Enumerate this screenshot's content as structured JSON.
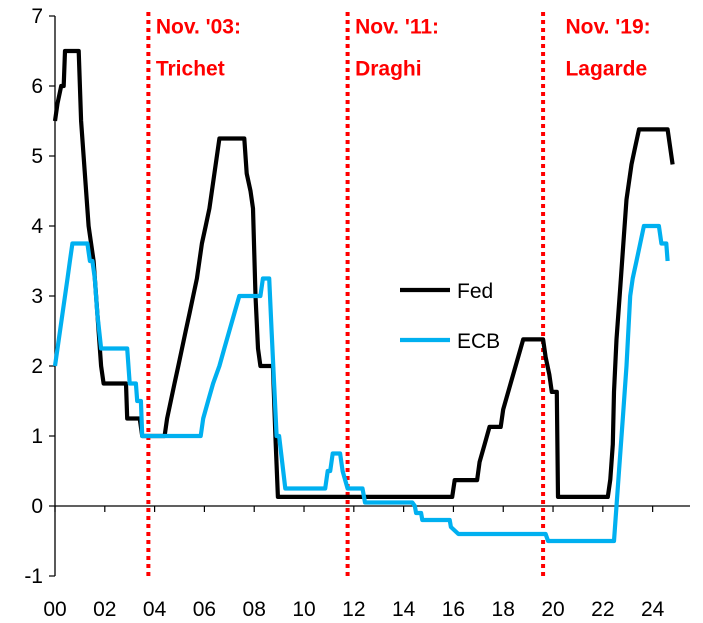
{
  "chart_data": {
    "type": "line",
    "title": "",
    "xlabel": "",
    "ylabel": "",
    "xlim": [
      0,
      25.5
    ],
    "ylim": [
      -1,
      7
    ],
    "y_ticks": [
      "-1",
      "0",
      "1",
      "2",
      "3",
      "4",
      "5",
      "6",
      "7"
    ],
    "y_tick_values": [
      -1,
      0,
      1,
      2,
      3,
      4,
      5,
      6,
      7
    ],
    "x_ticks": [
      "00",
      "02",
      "04",
      "06",
      "08",
      "10",
      "12",
      "14",
      "16",
      "18",
      "20",
      "22",
      "24"
    ],
    "x_tick_values": [
      0,
      2,
      4,
      6,
      8,
      10,
      12,
      14,
      16,
      18,
      20,
      22,
      24
    ],
    "legend": {
      "position": "center-right"
    },
    "series": [
      {
        "name": "Fed",
        "color": "#000000",
        "points": [
          [
            0.0,
            5.5
          ],
          [
            0.1,
            5.75
          ],
          [
            0.25,
            6.0
          ],
          [
            0.35,
            6.0
          ],
          [
            0.4,
            6.5
          ],
          [
            0.95,
            6.5
          ],
          [
            1.05,
            5.5
          ],
          [
            1.15,
            5.0
          ],
          [
            1.25,
            4.5
          ],
          [
            1.35,
            4.0
          ],
          [
            1.45,
            3.75
          ],
          [
            1.55,
            3.5
          ],
          [
            1.65,
            3.0
          ],
          [
            1.75,
            2.5
          ],
          [
            1.85,
            2.0
          ],
          [
            1.95,
            1.75
          ],
          [
            2.85,
            1.75
          ],
          [
            2.9,
            1.25
          ],
          [
            3.4,
            1.25
          ],
          [
            3.5,
            1.0
          ],
          [
            4.4,
            1.0
          ],
          [
            4.5,
            1.25
          ],
          [
            4.65,
            1.5
          ],
          [
            4.8,
            1.75
          ],
          [
            4.95,
            2.0
          ],
          [
            5.1,
            2.25
          ],
          [
            5.25,
            2.5
          ],
          [
            5.4,
            2.75
          ],
          [
            5.55,
            3.0
          ],
          [
            5.7,
            3.25
          ],
          [
            5.8,
            3.5
          ],
          [
            5.9,
            3.75
          ],
          [
            6.05,
            4.0
          ],
          [
            6.2,
            4.25
          ],
          [
            6.3,
            4.5
          ],
          [
            6.4,
            4.75
          ],
          [
            6.5,
            5.0
          ],
          [
            6.6,
            5.25
          ],
          [
            7.6,
            5.25
          ],
          [
            7.7,
            4.75
          ],
          [
            7.85,
            4.5
          ],
          [
            7.95,
            4.25
          ],
          [
            8.05,
            3.0
          ],
          [
            8.15,
            2.25
          ],
          [
            8.25,
            2.0
          ],
          [
            8.75,
            2.0
          ],
          [
            8.85,
            1.0
          ],
          [
            8.95,
            0.13
          ],
          [
            15.95,
            0.13
          ],
          [
            16.05,
            0.37
          ],
          [
            16.95,
            0.37
          ],
          [
            17.05,
            0.63
          ],
          [
            17.25,
            0.88
          ],
          [
            17.45,
            1.13
          ],
          [
            17.9,
            1.13
          ],
          [
            18.0,
            1.38
          ],
          [
            18.2,
            1.63
          ],
          [
            18.4,
            1.88
          ],
          [
            18.6,
            2.13
          ],
          [
            18.8,
            2.38
          ],
          [
            19.6,
            2.38
          ],
          [
            19.7,
            2.13
          ],
          [
            19.85,
            1.88
          ],
          [
            19.95,
            1.63
          ],
          [
            20.15,
            1.63
          ],
          [
            20.2,
            0.13
          ],
          [
            22.2,
            0.13
          ],
          [
            22.3,
            0.38
          ],
          [
            22.4,
            0.88
          ],
          [
            22.45,
            1.63
          ],
          [
            22.55,
            2.38
          ],
          [
            22.7,
            3.13
          ],
          [
            22.85,
            3.88
          ],
          [
            22.95,
            4.38
          ],
          [
            23.05,
            4.63
          ],
          [
            23.15,
            4.88
          ],
          [
            23.3,
            5.13
          ],
          [
            23.45,
            5.38
          ],
          [
            24.6,
            5.38
          ],
          [
            24.7,
            5.13
          ],
          [
            24.8,
            4.88
          ]
        ]
      },
      {
        "name": "ECB",
        "color": "#00b0f0",
        "points": [
          [
            0.0,
            2.0
          ],
          [
            0.1,
            2.25
          ],
          [
            0.2,
            2.5
          ],
          [
            0.3,
            2.75
          ],
          [
            0.4,
            3.0
          ],
          [
            0.5,
            3.25
          ],
          [
            0.6,
            3.5
          ],
          [
            0.7,
            3.75
          ],
          [
            1.3,
            3.75
          ],
          [
            1.4,
            3.5
          ],
          [
            1.5,
            3.5
          ],
          [
            1.6,
            3.25
          ],
          [
            1.7,
            2.75
          ],
          [
            1.85,
            2.25
          ],
          [
            2.9,
            2.25
          ],
          [
            3.0,
            1.75
          ],
          [
            3.25,
            1.75
          ],
          [
            3.3,
            1.5
          ],
          [
            3.45,
            1.5
          ],
          [
            3.5,
            1.0
          ],
          [
            5.85,
            1.0
          ],
          [
            5.95,
            1.25
          ],
          [
            6.15,
            1.5
          ],
          [
            6.35,
            1.75
          ],
          [
            6.6,
            2.0
          ],
          [
            6.8,
            2.25
          ],
          [
            7.0,
            2.5
          ],
          [
            7.2,
            2.75
          ],
          [
            7.4,
            3.0
          ],
          [
            8.25,
            3.0
          ],
          [
            8.35,
            3.25
          ],
          [
            8.6,
            3.25
          ],
          [
            8.7,
            2.5
          ],
          [
            8.8,
            1.75
          ],
          [
            8.9,
            1.0
          ],
          [
            9.0,
            1.0
          ],
          [
            9.25,
            0.25
          ],
          [
            10.85,
            0.25
          ],
          [
            10.95,
            0.5
          ],
          [
            11.05,
            0.5
          ],
          [
            11.15,
            0.75
          ],
          [
            11.45,
            0.75
          ],
          [
            11.55,
            0.5
          ],
          [
            11.75,
            0.25
          ],
          [
            12.35,
            0.25
          ],
          [
            12.45,
            0.05
          ],
          [
            14.35,
            0.05
          ],
          [
            14.45,
            0.0
          ],
          [
            14.5,
            -0.1
          ],
          [
            14.7,
            -0.1
          ],
          [
            14.75,
            -0.2
          ],
          [
            15.85,
            -0.2
          ],
          [
            15.9,
            -0.3
          ],
          [
            16.2,
            -0.4
          ],
          [
            19.7,
            -0.4
          ],
          [
            19.8,
            -0.5
          ],
          [
            22.45,
            -0.5
          ],
          [
            22.55,
            0.0
          ],
          [
            22.65,
            0.5
          ],
          [
            22.8,
            1.25
          ],
          [
            22.95,
            2.0
          ],
          [
            23.1,
            3.0
          ],
          [
            23.2,
            3.25
          ],
          [
            23.35,
            3.5
          ],
          [
            23.5,
            3.75
          ],
          [
            23.65,
            4.0
          ],
          [
            24.25,
            4.0
          ],
          [
            24.35,
            3.75
          ],
          [
            24.55,
            3.75
          ],
          [
            24.6,
            3.5
          ]
        ]
      }
    ],
    "vlines": [
      {
        "x": 3.75,
        "color": "#ff0000",
        "style": "dotted"
      },
      {
        "x": 11.75,
        "color": "#ff0000",
        "style": "dotted"
      },
      {
        "x": 19.6,
        "color": "#ff0000",
        "style": "dotted"
      }
    ],
    "annotations": [
      {
        "x": 4.05,
        "y": 6.75,
        "text": "Nov. '03:",
        "color": "#ff0000"
      },
      {
        "x": 4.05,
        "y": 6.15,
        "text": "Trichet",
        "color": "#ff0000"
      },
      {
        "x": 12.05,
        "y": 6.75,
        "text": "Nov. '11:",
        "color": "#ff0000"
      },
      {
        "x": 12.05,
        "y": 6.15,
        "text": "Draghi",
        "color": "#ff0000"
      },
      {
        "x": 20.5,
        "y": 6.75,
        "text": "Nov. '19:",
        "color": "#ff0000"
      },
      {
        "x": 20.5,
        "y": 6.15,
        "text": "Lagarde",
        "color": "#ff0000"
      }
    ]
  }
}
